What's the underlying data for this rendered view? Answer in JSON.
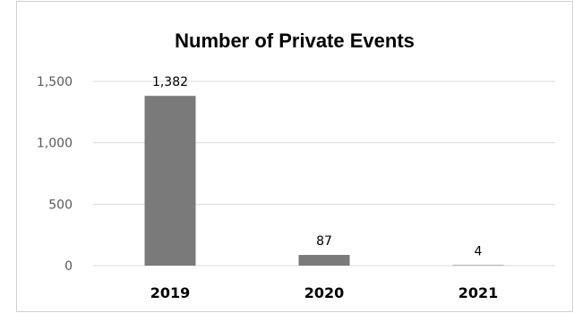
{
  "chart_data": {
    "type": "bar",
    "title": "Number of Private Events",
    "xlabel": "",
    "ylabel": "",
    "categories": [
      "2019",
      "2020",
      "2021"
    ],
    "values": [
      1382,
      87,
      4
    ],
    "data_labels": [
      "1,382",
      "87",
      "4"
    ],
    "ylim": [
      0,
      1500
    ],
    "yticks": [
      0,
      500,
      1000,
      1500
    ],
    "ytick_labels": [
      "0",
      "500",
      "1,000",
      "1,500"
    ],
    "grid": true,
    "legend": "none",
    "bar_color": "#7a7a7a",
    "grid_color": "#d9d9d9"
  }
}
